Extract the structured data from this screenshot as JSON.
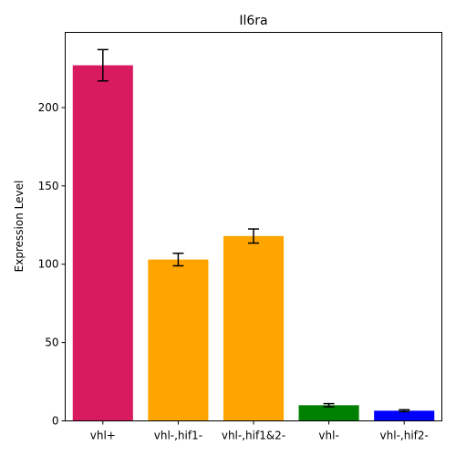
{
  "chart_data": {
    "type": "bar",
    "title": "Il6ra",
    "xlabel": "",
    "ylabel": "Expression Level",
    "categories": [
      "vhl+",
      "vhl-,hif1-",
      "vhl-,hif1&2-",
      "vhl-",
      "vhl-,hif2-"
    ],
    "values": [
      227,
      103,
      118,
      10,
      6.5
    ],
    "errors": [
      10,
      4,
      4.5,
      1,
      0.6
    ],
    "colors": [
      "#d81b5e",
      "#ffa500",
      "#ffa500",
      "#008000",
      "#0000ff"
    ],
    "ylim": [
      0,
      248
    ],
    "yticks": [
      0,
      50,
      100,
      150,
      200
    ],
    "grid": false,
    "legend": "none"
  }
}
